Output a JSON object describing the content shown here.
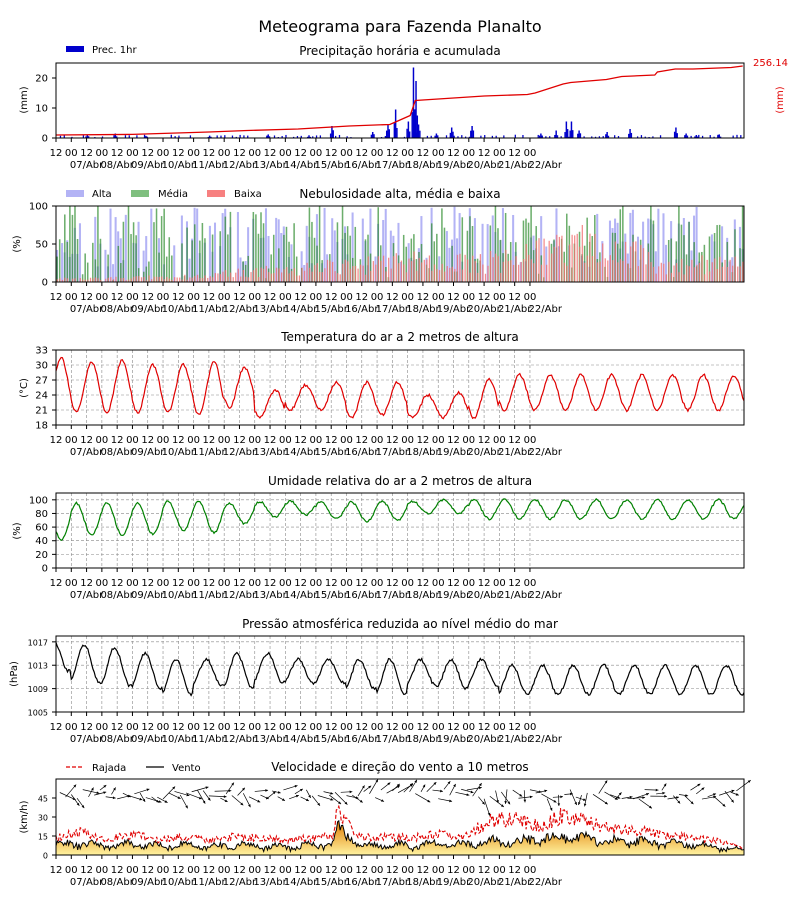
{
  "title": "Meteograma para Fazenda Planalto",
  "time_axis": {
    "hour_labels": [
      "12",
      "00",
      "12",
      "00",
      "12",
      "00",
      "12",
      "00",
      "12",
      "00",
      "12",
      "00",
      "12",
      "00",
      "12",
      "00",
      "12",
      "00",
      "12",
      "00",
      "12",
      "00",
      "12",
      "00",
      "12",
      "00",
      "12",
      "00",
      "12",
      "00",
      "12",
      "00"
    ],
    "date_labels": [
      "07/Abr",
      "08/Abr",
      "09/Abr",
      "10/Abr",
      "11/Abr",
      "12/Abr",
      "13/Abr",
      "14/Abr",
      "15/Abr",
      "16/Abr",
      "17/Abr",
      "18/Abr",
      "19/Abr",
      "20/Abr",
      "21/Abr",
      "22/Abr"
    ]
  },
  "colors": {
    "precip_bar": "#0000cc",
    "precip_line": "#e00000",
    "cloud_high": "#b3b3f5",
    "cloud_mid": "#2e8b2e",
    "cloud_low": "#f07070",
    "temperature": "#e00000",
    "humidity": "#008000",
    "pressure": "#000000",
    "gust": "#e00000",
    "wind": "#000000",
    "wind_fill": "#f5a623"
  },
  "chart_data": [
    {
      "type": "bar",
      "title": "Precipitação horária e acumulada",
      "ylabel": "(mm)",
      "ylabel_right": "(mm)",
      "ylim": [
        0,
        25
      ],
      "yticks": [
        "0",
        "10",
        "20"
      ],
      "legend": [
        "Prec. 1hr"
      ],
      "accumulated_total_label": "256.14",
      "hourly_events": [
        {
          "t": 24,
          "v": 1.0
        },
        {
          "t": 46,
          "v": 1.5
        },
        {
          "t": 70,
          "v": 0.7
        },
        {
          "t": 120,
          "v": 0.8
        },
        {
          "t": 166,
          "v": 1.2
        },
        {
          "t": 198,
          "v": 0.9
        },
        {
          "t": 216,
          "v": 4.0
        },
        {
          "t": 248,
          "v": 2.0
        },
        {
          "t": 260,
          "v": 4.5
        },
        {
          "t": 266,
          "v": 9.5
        },
        {
          "t": 276,
          "v": 5.5
        },
        {
          "t": 280,
          "v": 23.5
        },
        {
          "t": 282,
          "v": 19.0
        },
        {
          "t": 284,
          "v": 4.5
        },
        {
          "t": 298,
          "v": 1.5
        },
        {
          "t": 310,
          "v": 3.5
        },
        {
          "t": 326,
          "v": 4.0
        },
        {
          "t": 380,
          "v": 1.5
        },
        {
          "t": 392,
          "v": 2.5
        },
        {
          "t": 400,
          "v": 5.5
        },
        {
          "t": 404,
          "v": 5.5
        },
        {
          "t": 410,
          "v": 2.5
        },
        {
          "t": 432,
          "v": 2.0
        },
        {
          "t": 450,
          "v": 3.0
        },
        {
          "t": 486,
          "v": 3.5
        },
        {
          "t": 494,
          "v": 1.5
        },
        {
          "t": 502,
          "v": 1.0
        },
        {
          "t": 520,
          "v": 1.2
        }
      ],
      "accumulated": {
        "t": [
          0,
          60,
          120,
          150,
          190,
          230,
          262,
          270,
          278,
          282,
          300,
          336,
          370,
          376,
          398,
          404,
          432,
          444,
          470,
          472,
          486,
          500,
          530,
          539
        ],
        "v": [
          1.0,
          1.2,
          2.0,
          2.5,
          3.0,
          4.0,
          4.5,
          6.0,
          7.5,
          12.5,
          13.0,
          14.0,
          14.5,
          15.0,
          18.0,
          18.5,
          19.5,
          20.5,
          21.0,
          22.0,
          23.0,
          23.0,
          23.5,
          24.0
        ]
      }
    },
    {
      "type": "bar",
      "title": "Nebulosidade alta, média e baixa",
      "ylabel": "(%)",
      "ylim": [
        0,
        100
      ],
      "yticks": [
        "0",
        "50",
        "100"
      ],
      "series_names": [
        "Alta",
        "Média",
        "Baixa"
      ],
      "low_cloud_envelope": {
        "t": [
          0,
          100,
          140,
          180,
          200,
          240,
          270,
          300,
          330,
          360,
          390,
          420,
          450,
          480,
          510,
          539
        ],
        "v": [
          5,
          8,
          15,
          20,
          25,
          30,
          40,
          30,
          35,
          40,
          55,
          75,
          50,
          25,
          30,
          30
        ]
      }
    },
    {
      "type": "line",
      "title": "Temperatura do ar a 2 metros de altura",
      "ylabel": "(°C)",
      "ylim": [
        18,
        33
      ],
      "yticks": [
        "18",
        "21",
        "24",
        "27",
        "30",
        "33"
      ],
      "daily_max": [
        31.5,
        30.5,
        31.0,
        30.0,
        30.0,
        30.5,
        29.5,
        25.0,
        26.0,
        26.5,
        26.5,
        26.5,
        24.0,
        24.5,
        27.0,
        28.0
      ],
      "daily_min": [
        20.5,
        20.5,
        20.5,
        20.5,
        20.5,
        20.0,
        21.5,
        19.5,
        21.0,
        21.0,
        19.5,
        20.0,
        19.5,
        19.5,
        19.5,
        21.0
      ]
    },
    {
      "type": "line",
      "title": "Umidade relativa do ar a 2 metros de altura",
      "ylabel": "(%)",
      "ylim": [
        0,
        110
      ],
      "yticks": [
        "0",
        "20",
        "40",
        "60",
        "80",
        "100"
      ],
      "daily_max": [
        90,
        95,
        95,
        95,
        98,
        98,
        95,
        97,
        98,
        97,
        97,
        98,
        98,
        100,
        100,
        100
      ],
      "daily_min": [
        42,
        48,
        48,
        50,
        55,
        52,
        65,
        75,
        78,
        72,
        68,
        70,
        80,
        80,
        72,
        72
      ]
    },
    {
      "type": "line",
      "title": "Pressão atmosférica reduzida ao nível médio do mar",
      "ylabel": "(hPa)",
      "ylim": [
        1005,
        1018
      ],
      "yticks": [
        "1005",
        "1009",
        "1013",
        "1017"
      ],
      "daily_max": [
        1017.0,
        1016.5,
        1016.0,
        1015.0,
        1014.0,
        1014.0,
        1015.0,
        1015.0,
        1014.0,
        1014.0,
        1014.0,
        1014.0,
        1014.0,
        1014.0,
        1014.0,
        1013.0
      ],
      "daily_min": [
        1012.0,
        1010.0,
        1009.5,
        1009.0,
        1008.0,
        1009.5,
        1009.0,
        1010.0,
        1010.0,
        1010.0,
        1009.0,
        1008.0,
        1009.5,
        1009.0,
        1009.5,
        1008.0
      ]
    },
    {
      "type": "area",
      "title": "Velocidade e direção do vento a 10 metros",
      "ylabel": "(km/h)",
      "ylim": [
        0,
        60
      ],
      "yticks": [
        "0",
        "15",
        "30",
        "45"
      ],
      "series_names": [
        "Rajada",
        "Vento"
      ],
      "wind_envelope": {
        "t": [
          0,
          20,
          40,
          60,
          80,
          100,
          120,
          140,
          160,
          180,
          200,
          218,
          220,
          240,
          260,
          280,
          300,
          320,
          340,
          360,
          380,
          400,
          420,
          440,
          460,
          480,
          500,
          520,
          539
        ],
        "v": [
          9,
          10,
          8,
          10,
          8,
          9,
          7,
          9,
          8,
          7,
          9,
          10,
          25,
          8,
          9,
          8,
          10,
          9,
          12,
          11,
          15,
          16,
          14,
          12,
          12,
          10,
          9,
          7,
          4
        ]
      },
      "gust_envelope": {
        "t": [
          0,
          20,
          40,
          60,
          80,
          100,
          120,
          140,
          160,
          180,
          200,
          218,
          220,
          240,
          260,
          280,
          300,
          320,
          340,
          360,
          380,
          400,
          420,
          440,
          460,
          480,
          500,
          520,
          539
        ],
        "v": [
          15,
          20,
          14,
          18,
          13,
          16,
          13,
          16,
          15,
          13,
          15,
          17,
          38,
          15,
          16,
          15,
          18,
          15,
          30,
          32,
          25,
          36,
          28,
          22,
          22,
          17,
          16,
          12,
          7
        ]
      }
    }
  ]
}
